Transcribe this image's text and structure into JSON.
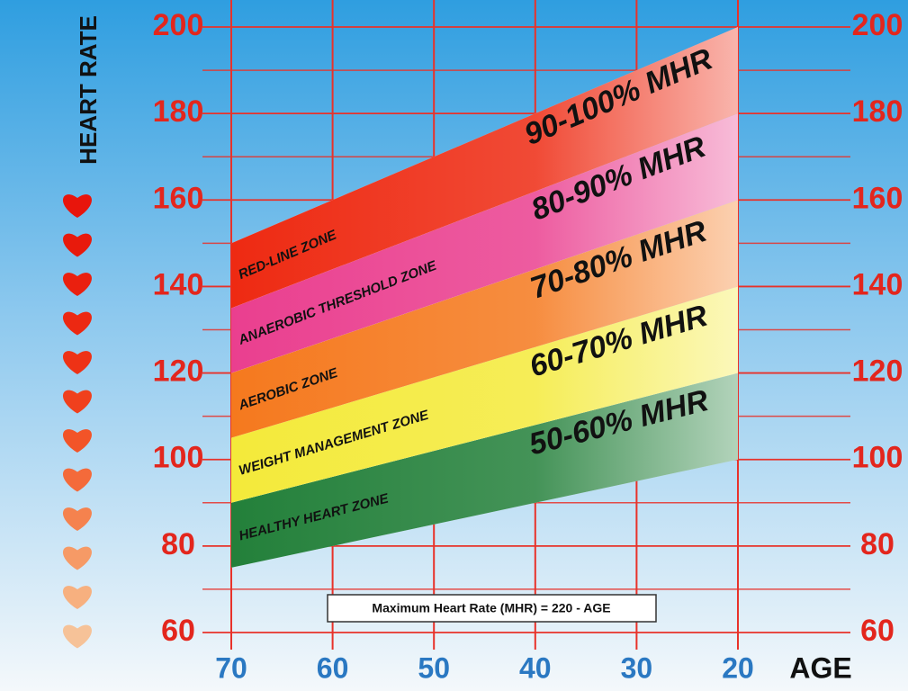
{
  "chart_data": {
    "type": "band",
    "y_label": "HEART RATE",
    "x_label": "AGE",
    "annotation": "Maximum Heart Rate (MHR) = 220 - AGE",
    "x": [
      70,
      20
    ],
    "xlim": [
      70,
      20
    ],
    "xticks": [
      70,
      60,
      50,
      40,
      30,
      20
    ],
    "ylim": [
      60,
      200
    ],
    "yticks": [
      60,
      80,
      100,
      120,
      140,
      160,
      180,
      200
    ],
    "minor_yticks": [
      70,
      90,
      110,
      130,
      150,
      170,
      190
    ],
    "grid": true,
    "grid_color": "#e8322a",
    "tick_label_color": "#e3261d",
    "x_tick_label_color": "#2a78c2",
    "series": [
      {
        "name": "HEALTHY HEART ZONE",
        "label": "50-60% MHR",
        "color": "#23803a",
        "low": [
          75,
          100
        ],
        "high": [
          90,
          120
        ]
      },
      {
        "name": "WEIGHT MANAGEMENT ZONE",
        "label": "60-70% MHR",
        "color": "#f4ea3a",
        "low": [
          90,
          120
        ],
        "high": [
          105,
          140
        ]
      },
      {
        "name": "AEROBIC ZONE",
        "label": "70-80% MHR",
        "color": "#f5791e",
        "low": [
          105,
          140
        ],
        "high": [
          120,
          160
        ]
      },
      {
        "name": "ANAEROBIC THRESHOLD ZONE",
        "label": "80-90% MHR",
        "color": "#ea3f8f",
        "low": [
          120,
          160
        ],
        "high": [
          135,
          180
        ]
      },
      {
        "name": "RED-LINE ZONE",
        "label": "90-100% MHR",
        "color": "#ee2a12",
        "low": [
          135,
          180
        ],
        "high": [
          150,
          200
        ]
      }
    ]
  }
}
